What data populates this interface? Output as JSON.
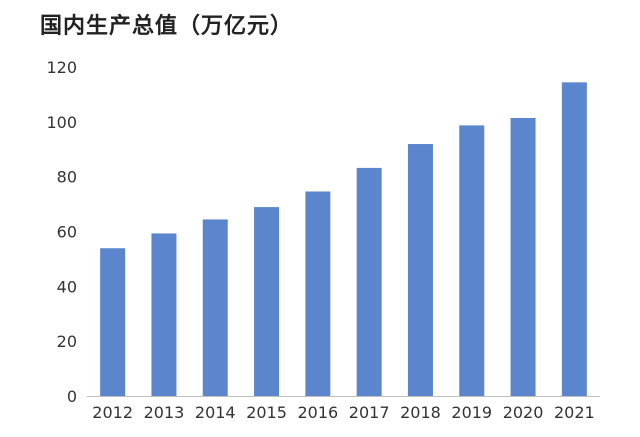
{
  "chart_data": {
    "type": "bar",
    "title": "国内生产总值（万亿元）",
    "categories": [
      "2012",
      "2013",
      "2014",
      "2015",
      "2016",
      "2017",
      "2018",
      "2019",
      "2020",
      "2021"
    ],
    "values": [
      53.9,
      59.3,
      64.4,
      68.9,
      74.6,
      83.2,
      91.9,
      98.7,
      101.4,
      114.4
    ],
    "yticks": [
      "0",
      "20",
      "40",
      "60",
      "80",
      "100",
      "120"
    ],
    "ylim": [
      0,
      120
    ],
    "xlabel": "",
    "ylabel": "",
    "grid": false,
    "bar_color": "#5b85cc"
  }
}
